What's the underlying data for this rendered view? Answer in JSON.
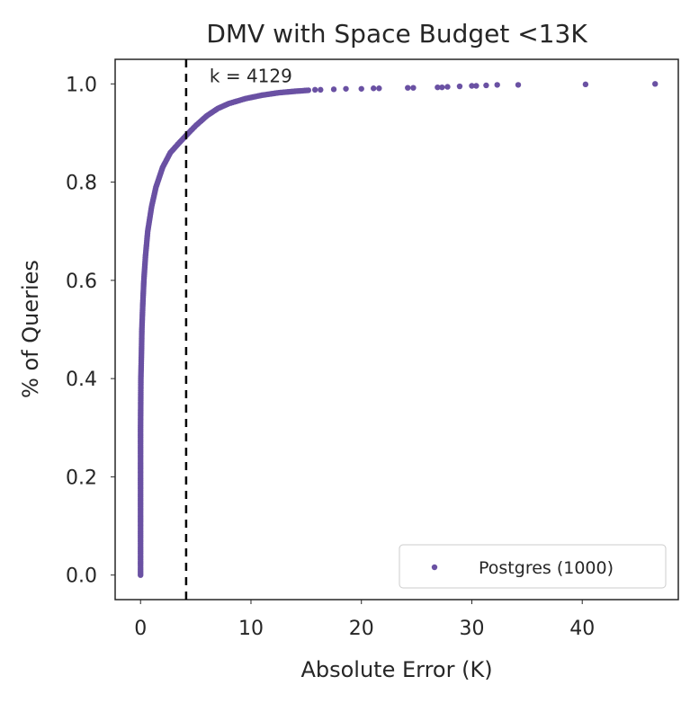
{
  "chart_data": {
    "type": "scatter",
    "title": "DMV with Space Budget <13K",
    "xlabel": "Absolute Error (K)",
    "ylabel": "% of Queries",
    "xlim": [
      -2.3,
      48.7
    ],
    "ylim": [
      -0.05,
      1.05
    ],
    "xticks": [
      0,
      10,
      20,
      30,
      40
    ],
    "yticks": [
      0.0,
      0.2,
      0.4,
      0.6,
      0.8,
      1.0
    ],
    "xtick_labels": [
      "0",
      "10",
      "20",
      "30",
      "40"
    ],
    "ytick_labels": [
      "0.0",
      "0.2",
      "0.4",
      "0.6",
      "0.8",
      "1.0"
    ],
    "grid": false,
    "legend_position": "lower-right",
    "reference_line": {
      "x": 4.129,
      "style": "dashed",
      "color": "#000000"
    },
    "annotation": {
      "text": "k = 4129",
      "x": 4.129,
      "y": 1.0
    },
    "series": [
      {
        "name": "Postgres (1000)",
        "color": "#6a51a3",
        "curve_points": [
          [
            0.0,
            0.0
          ],
          [
            0.0,
            0.1
          ],
          [
            0.0,
            0.2
          ],
          [
            0.0,
            0.3
          ],
          [
            0.03,
            0.4
          ],
          [
            0.08,
            0.45
          ],
          [
            0.12,
            0.5
          ],
          [
            0.2,
            0.55
          ],
          [
            0.3,
            0.6
          ],
          [
            0.45,
            0.65
          ],
          [
            0.65,
            0.7
          ],
          [
            1.0,
            0.75
          ],
          [
            1.4,
            0.79
          ],
          [
            2.0,
            0.83
          ],
          [
            2.7,
            0.86
          ],
          [
            3.5,
            0.88
          ],
          [
            4.13,
            0.895
          ],
          [
            5.0,
            0.915
          ],
          [
            6.0,
            0.935
          ],
          [
            7.0,
            0.95
          ],
          [
            8.0,
            0.96
          ],
          [
            9.5,
            0.97
          ],
          [
            11.0,
            0.977
          ],
          [
            12.5,
            0.982
          ],
          [
            14.0,
            0.985
          ],
          [
            15.2,
            0.987
          ]
        ],
        "tail_points": [
          [
            15.8,
            0.988
          ],
          [
            16.3,
            0.988
          ],
          [
            17.5,
            0.989
          ],
          [
            18.6,
            0.99
          ],
          [
            20.0,
            0.99
          ],
          [
            21.1,
            0.991
          ],
          [
            21.6,
            0.991
          ],
          [
            24.2,
            0.992
          ],
          [
            24.7,
            0.992
          ],
          [
            26.9,
            0.993
          ],
          [
            27.3,
            0.993
          ],
          [
            27.8,
            0.994
          ],
          [
            28.9,
            0.995
          ],
          [
            30.0,
            0.996
          ],
          [
            30.4,
            0.996
          ],
          [
            31.3,
            0.997
          ],
          [
            32.3,
            0.998
          ],
          [
            34.2,
            0.998
          ],
          [
            40.3,
            0.999
          ],
          [
            46.6,
            1.0
          ]
        ]
      }
    ]
  }
}
